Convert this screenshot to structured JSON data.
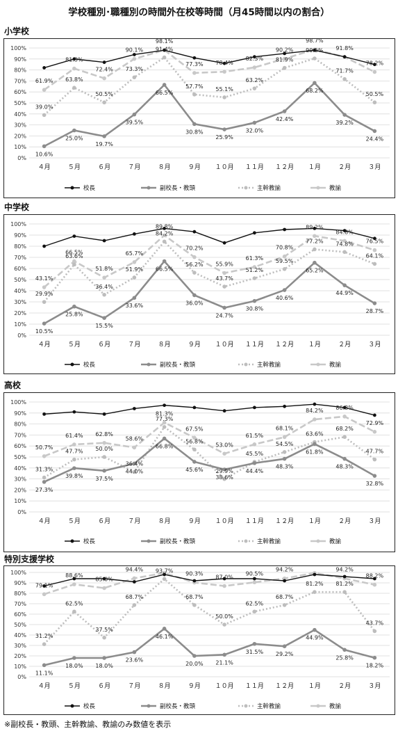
{
  "title": "学校種別･職種別の時間外在校等時間（月45時間以内の割合）",
  "footnote": "※副校長・教頭、主幹教諭、教諭のみ数値を表示",
  "chart_data": [
    {
      "type": "line",
      "heading": "小学校",
      "categories": [
        "４月",
        "５月",
        "６月",
        "７月",
        "８月",
        "９月",
        "１０月",
        "１１月",
        "１２月",
        "１月",
        "２月",
        "３月"
      ],
      "ylim": [
        0,
        100
      ],
      "yticks": [
        "0%",
        "10%",
        "20%",
        "30%",
        "40%",
        "50%",
        "60%",
        "70%",
        "80%",
        "90%",
        "100%"
      ],
      "grid": true,
      "legend": "bottom",
      "series": [
        {
          "name": "校長",
          "values": [
            82,
            90,
            87,
            94,
            98,
            91,
            86,
            92,
            95,
            98,
            92,
            85
          ],
          "labels": []
        },
        {
          "name": "副校長・教頭",
          "values": [
            10.6,
            25.0,
            19.7,
            39.5,
            66.5,
            30.8,
            25.9,
            32.0,
            42.4,
            68.2,
            39.2,
            24.4
          ],
          "labels": [
            "10.6%",
            "25.0%",
            "19.7%",
            "39.5%",
            "66.5%",
            "30.8%",
            "25.9%",
            "32.0%",
            "42.4%",
            "68.2%",
            "39.2%",
            "24.4%"
          ]
        },
        {
          "name": "主幹教諭",
          "values": [
            39.0,
            63.8,
            50.5,
            73.3,
            91.4,
            57.7,
            55.1,
            63.2,
            81.9,
            90.5,
            71.7,
            50.5
          ],
          "labels": [
            "39.0%",
            "63.8%",
            "50.5%",
            "73.3%",
            "91.4%",
            "57.7%",
            "55.1%",
            "63.2%",
            "81.9%",
            "90.5%",
            "71.7%",
            "50.5%"
          ]
        },
        {
          "name": "教諭",
          "values": [
            61.9,
            81.3,
            72.4,
            90.1,
            98.1,
            77.3,
            78.4,
            82.3,
            90.2,
            98.7,
            91.8,
            78.2
          ],
          "labels": [
            "61.9%",
            "81.3%",
            "72.4%",
            "90.1%",
            "98.1%",
            "77.3%",
            "78.4%",
            "82.3%",
            "90.2%",
            "98.7%",
            "91.8%",
            "78.2%"
          ]
        }
      ]
    },
    {
      "type": "line",
      "heading": "中学校",
      "categories": [
        "４月",
        "５月",
        "６月",
        "７月",
        "８月",
        "９月",
        "１０月",
        "１１月",
        "１２月",
        "１月",
        "２月",
        "３月"
      ],
      "ylim": [
        0,
        100
      ],
      "yticks": [
        "0%",
        "10%",
        "20%",
        "30%",
        "40%",
        "50%",
        "60%",
        "70%",
        "80%",
        "90%",
        "100%"
      ],
      "grid": true,
      "legend": "bottom",
      "series": [
        {
          "name": "校長",
          "values": [
            80,
            89,
            85,
            91,
            96,
            93,
            83,
            92,
            95,
            96,
            94,
            87
          ],
          "labels": []
        },
        {
          "name": "副校長・教頭",
          "values": [
            10.5,
            25.8,
            15.5,
            33.6,
            66.5,
            36.0,
            24.7,
            30.8,
            40.6,
            65.2,
            44.9,
            28.7
          ],
          "labels": [
            "10.5%",
            "25.8%",
            "15.5%",
            "33.6%",
            "66.5%",
            "36.0%",
            "24.7%",
            "30.8%",
            "40.6%",
            "65.2%",
            "44.9%",
            "28.7%"
          ]
        },
        {
          "name": "主幹教諭",
          "values": [
            29.9,
            63.6,
            36.4,
            51.9,
            84.2,
            56.2,
            43.7,
            51.2,
            59.5,
            77.2,
            74.8,
            64.1
          ],
          "labels": [
            "29.9%",
            "63.6%",
            "36.4%",
            "51.9%",
            "84.2%",
            "56.2%",
            "43.7%",
            "51.2%",
            "59.5%",
            "77.2%",
            "74.8%",
            "64.1%"
          ]
        },
        {
          "name": "教諭",
          "values": [
            43.1,
            66.5,
            51.8,
            65.7,
            89.8,
            70.2,
            55.9,
            61.3,
            70.8,
            89.2,
            84.8,
            76.5
          ],
          "labels": [
            "43.1%",
            "66.5%",
            "51.8%",
            "65.7%",
            "89.8%",
            "70.2%",
            "55.9%",
            "61.3%",
            "70.8%",
            "89.2%",
            "84.8%",
            "76.5%"
          ]
        }
      ]
    },
    {
      "type": "line",
      "heading": "高校",
      "categories": [
        "４月",
        "５月",
        "６月",
        "７月",
        "８月",
        "９月",
        "１０月",
        "１１月",
        "１２月",
        "１月",
        "２月",
        "３月"
      ],
      "ylim": [
        0,
        100
      ],
      "yticks": [
        "0%",
        "10%",
        "20%",
        "30%",
        "40%",
        "50%",
        "60%",
        "70%",
        "80%",
        "90%",
        "100%"
      ],
      "grid": true,
      "legend": "bottom",
      "series": [
        {
          "name": "校長",
          "values": [
            89,
            91,
            89,
            94,
            97,
            95,
            92,
            95,
            96,
            98,
            95,
            88
          ],
          "labels": []
        },
        {
          "name": "副校長・教頭",
          "values": [
            27.3,
            39.8,
            37.5,
            44.0,
            66.8,
            45.6,
            38.6,
            44.4,
            48.3,
            61.8,
            48.3,
            32.8
          ],
          "labels": [
            "27.3%",
            "39.8%",
            "37.5%",
            "44.0%",
            "66.8%",
            "45.6%",
            "38.6%",
            "44.4%",
            "48.3%",
            "61.8%",
            "48.3%",
            "32.8%"
          ]
        },
        {
          "name": "主幹教諭",
          "values": [
            31.3,
            47.7,
            50.0,
            36.4,
            77.3,
            56.8,
            29.9,
            45.5,
            54.5,
            63.6,
            68.2,
            47.7
          ],
          "labels": [
            "31.3%",
            "47.7%",
            "50.0%",
            "36.4%",
            "77.3%",
            "56.8%",
            "29.9%",
            "45.5%",
            "54.5%",
            "63.6%",
            "68.2%",
            "47.7%"
          ]
        },
        {
          "name": "教諭",
          "values": [
            50.7,
            61.4,
            62.8,
            58.6,
            81.3,
            67.5,
            53.0,
            61.5,
            68.1,
            84.2,
            86.8,
            72.9
          ],
          "labels": [
            "50.7%",
            "61.4%",
            "62.8%",
            "58.6%",
            "81.3%",
            "67.5%",
            "53.0%",
            "61.5%",
            "68.1%",
            "84.2%",
            "86.8%",
            "72.9%"
          ]
        }
      ]
    },
    {
      "type": "line",
      "heading": "特別支援学校",
      "categories": [
        "４月",
        "５月",
        "６月",
        "７月",
        "８月",
        "９月",
        "１０月",
        "１１月",
        "１２月",
        "１月",
        "２月",
        "３月"
      ],
      "ylim": [
        0,
        100
      ],
      "yticks": [
        "0%",
        "10%",
        "20%",
        "30%",
        "40%",
        "50%",
        "60%",
        "70%",
        "80%",
        "90%",
        "100%"
      ],
      "grid": true,
      "legend": "bottom",
      "series": [
        {
          "name": "校長",
          "values": [
            87,
            94,
            94,
            91,
            98,
            92,
            94,
            94,
            92,
            98,
            96,
            94
          ],
          "labels": []
        },
        {
          "name": "副校長・教頭",
          "values": [
            11.1,
            18.0,
            18.0,
            23.6,
            46.1,
            20.0,
            21.1,
            31.5,
            29.2,
            44.9,
            25.8,
            18.2
          ],
          "labels": [
            "11.1%",
            "18.0%",
            "18.0%",
            "23.6%",
            "46.1%",
            "20.0%",
            "21.1%",
            "31.5%",
            "29.2%",
            "44.9%",
            "25.8%",
            "18.2%"
          ]
        },
        {
          "name": "主幹教諭",
          "values": [
            31.2,
            62.5,
            37.5,
            68.7,
            93.7,
            68.7,
            50.0,
            62.5,
            68.7,
            81.2,
            81.2,
            43.7
          ],
          "labels": [
            "31.2%",
            "62.5%",
            "37.5%",
            "68.7%",
            "93.7%",
            "68.7%",
            "50.0%",
            "62.5%",
            "68.7%",
            "81.2%",
            "81.2%",
            "43.7%"
          ]
        },
        {
          "name": "教諭",
          "values": [
            79.1,
            88.6,
            85.0,
            94.4,
            99.4,
            90.3,
            87.0,
            90.5,
            94.2,
            99.5,
            94.2,
            88.2
          ],
          "labels": [
            "79.1%",
            "88.6%",
            "85.0%",
            "94.4%",
            "99.4%",
            "90.3%",
            "87.0%",
            "90.5%",
            "94.2%",
            "99.5%",
            "94.2%",
            "88.2%"
          ]
        }
      ]
    }
  ],
  "series_style": [
    {
      "color": "#111111",
      "dash": "",
      "marker": "#111111"
    },
    {
      "color": "#8c8c8c",
      "dash": "",
      "marker": "#8c8c8c"
    },
    {
      "color": "#bdbdbd",
      "dash": "2,3",
      "marker": "#bdbdbd"
    },
    {
      "color": "#c8c8c8",
      "dash": "9,4",
      "marker": "#c8c8c8"
    }
  ]
}
